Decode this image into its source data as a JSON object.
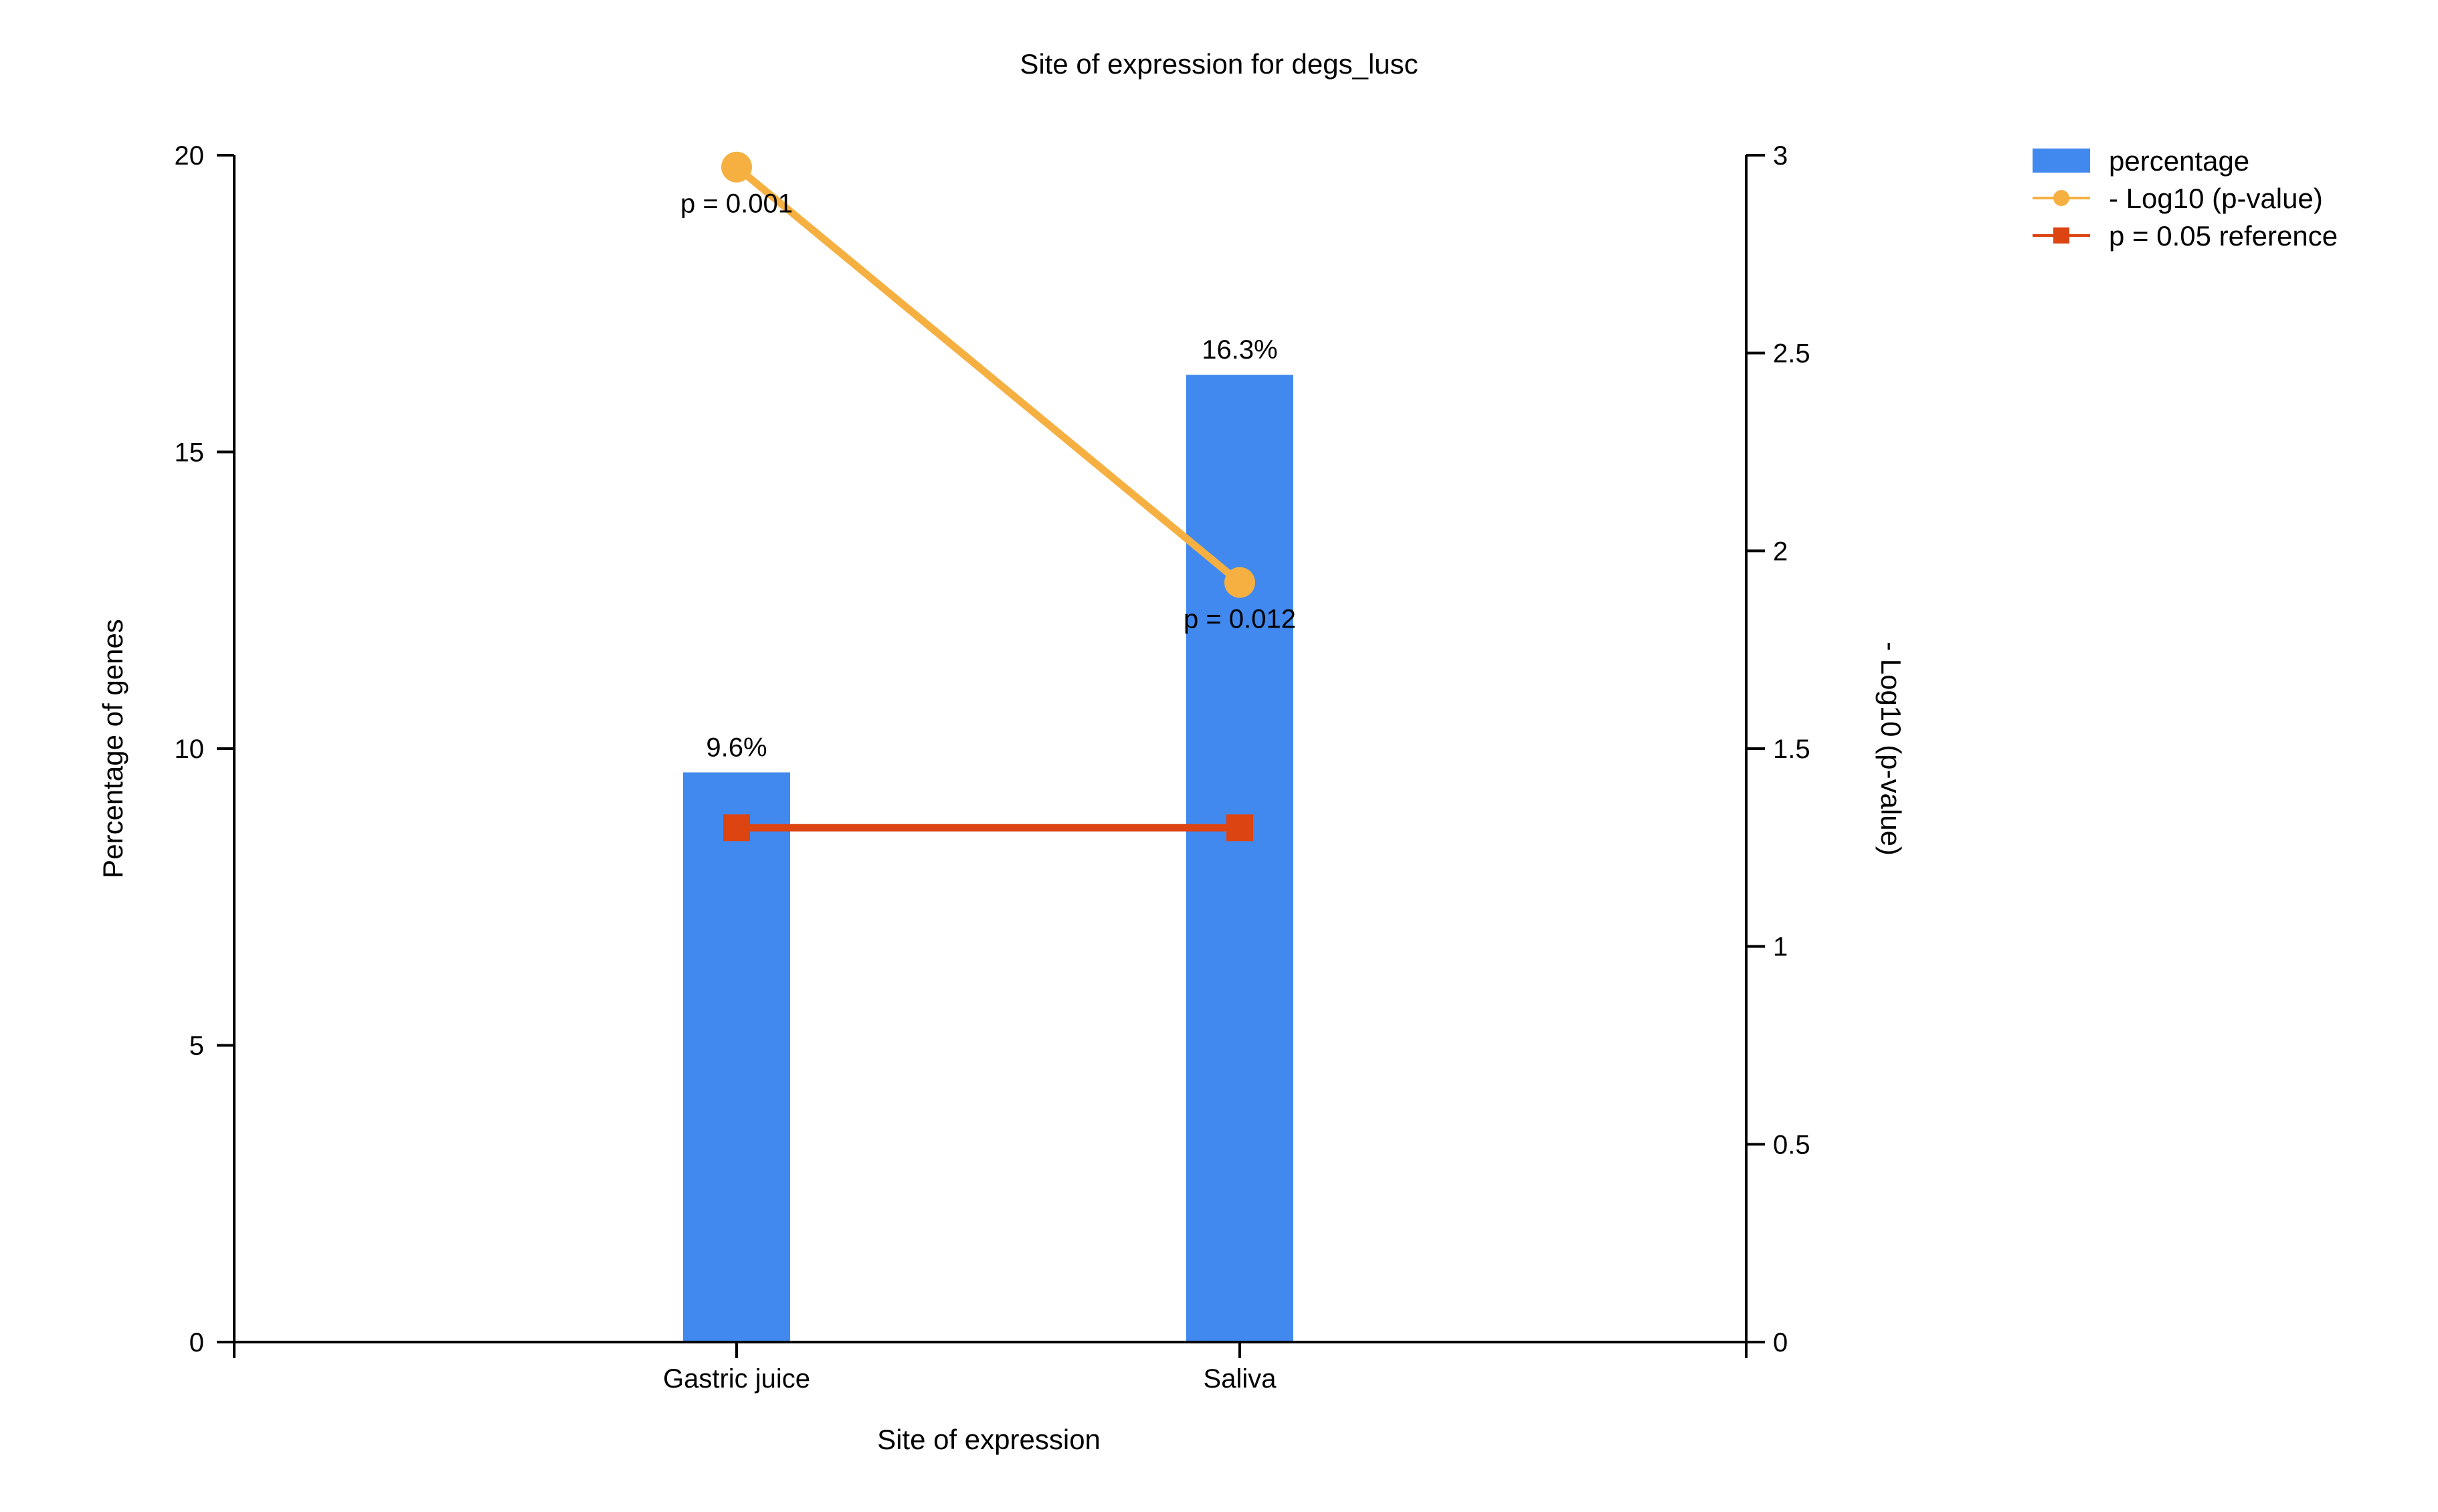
{
  "chart_data": {
    "type": "bar",
    "title": "Site of expression for degs_lusc",
    "xlabel": "Site of expression",
    "ylabel": "Percentage of genes",
    "y2label": "- Log10 (p-value)",
    "categories": [
      "Gastric juice",
      "Saliva"
    ],
    "ylim": [
      0,
      20
    ],
    "y2lim": [
      0,
      3
    ],
    "yticks": [
      "0",
      "5",
      "10",
      "15",
      "20"
    ],
    "y2ticks": [
      "0",
      "0.5",
      "1",
      "1.5",
      "2",
      "2.5",
      "3"
    ],
    "grid": false,
    "legend_position": "top-right",
    "series": [
      {
        "name": "percentage",
        "type": "bar",
        "axis": "left",
        "color": "#4189ee",
        "values": [
          9.6,
          16.3
        ],
        "labels": [
          "9.6%",
          "16.3%"
        ]
      },
      {
        "name": "- Log10 (p-value)",
        "type": "line",
        "axis": "right",
        "marker": "circle",
        "color": "#f5b041",
        "values": [
          2.97,
          1.92
        ],
        "labels": [
          "p = 0.001",
          "p = 0.012"
        ]
      },
      {
        "name": "p = 0.05 reference",
        "type": "line",
        "axis": "right",
        "marker": "square",
        "color": "#dc4412",
        "values": [
          1.3,
          1.3
        ]
      }
    ]
  }
}
